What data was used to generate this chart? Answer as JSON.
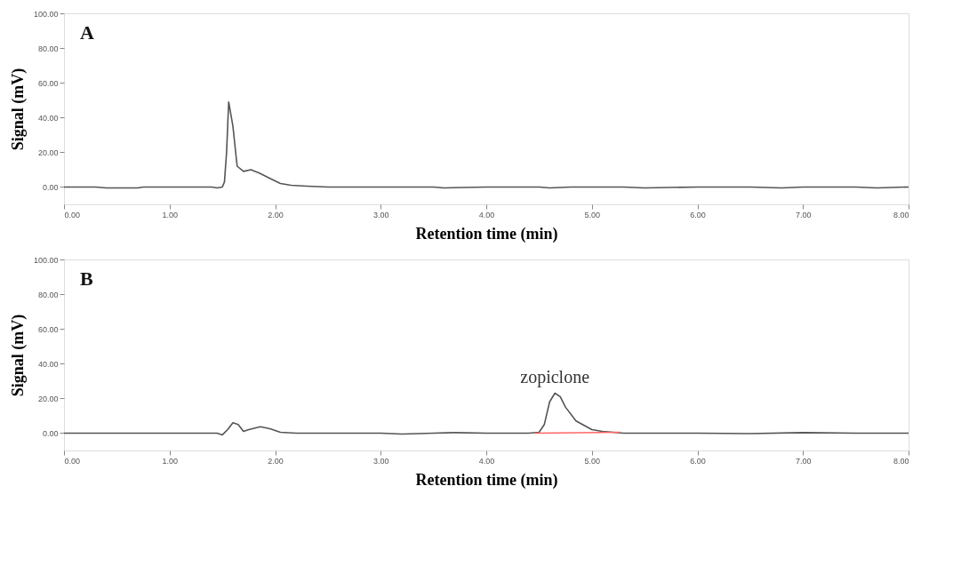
{
  "chart_data": [
    {
      "type": "line",
      "xlabel": "Retention time (min)",
      "ylabel": "Signal (mV)",
      "annotations": [
        "A"
      ],
      "xlim": [
        0,
        8
      ],
      "ylim": [
        -10,
        100
      ],
      "xticks": [
        {
          "value": 0,
          "label": "0.00"
        },
        {
          "value": 1,
          "label": "1.00"
        },
        {
          "value": 2,
          "label": "2.00"
        },
        {
          "value": 3,
          "label": "3.00"
        },
        {
          "value": 4,
          "label": "4.00"
        },
        {
          "value": 5,
          "label": "5.00"
        },
        {
          "value": 6,
          "label": "6.00"
        },
        {
          "value": 7,
          "label": "7.00"
        },
        {
          "value": 8,
          "label": "8.00"
        }
      ],
      "yticks": [
        {
          "value": 0,
          "label": "0.00"
        },
        {
          "value": 20,
          "label": "20.00"
        },
        {
          "value": 40,
          "label": "40.00"
        },
        {
          "value": 60,
          "label": "60.00"
        },
        {
          "value": 80,
          "label": "80.00"
        },
        {
          "value": 100,
          "label": "100.00"
        }
      ],
      "grid": false,
      "marker": "none",
      "line_style": "solid",
      "x": [
        0,
        0.3,
        0.4,
        0.7,
        0.75,
        1.4,
        1.45,
        1.5,
        1.52,
        1.54,
        1.56,
        1.6,
        1.64,
        1.7,
        1.77,
        1.85,
        1.95,
        2.05,
        2.15,
        2.3,
        2.5,
        3.5,
        3.6,
        4.0,
        4.5,
        4.6,
        4.8,
        5.3,
        5.5,
        6.0,
        6.5,
        6.8,
        7.0,
        7.5,
        7.7,
        8.0
      ],
      "series": [
        {
          "color": "#555555",
          "values": [
            0,
            0,
            -0.5,
            -0.5,
            0,
            0,
            -0.5,
            0,
            3,
            20,
            49,
            35,
            12,
            9,
            10,
            8,
            5,
            2,
            1,
            0.5,
            0,
            0,
            -0.5,
            0,
            0,
            -0.5,
            0,
            0,
            -0.5,
            0,
            0,
            -0.5,
            0,
            0,
            -0.5,
            0
          ]
        }
      ]
    },
    {
      "type": "line",
      "xlabel": "Retention time (min)",
      "ylabel": "Signal (mV)",
      "annotations": [
        "B",
        {
          "text": "zopiclone",
          "x": 4.65,
          "y": 23
        }
      ],
      "xlim": [
        0,
        8
      ],
      "ylim": [
        -10,
        100
      ],
      "xticks": [
        {
          "value": 0,
          "label": "0.00"
        },
        {
          "value": 1,
          "label": "1.00"
        },
        {
          "value": 2,
          "label": "2.00"
        },
        {
          "value": 3,
          "label": "3.00"
        },
        {
          "value": 4,
          "label": "4.00"
        },
        {
          "value": 5,
          "label": "5.00"
        },
        {
          "value": 6,
          "label": "6.00"
        },
        {
          "value": 7,
          "label": "7.00"
        },
        {
          "value": 8,
          "label": "8.00"
        }
      ],
      "yticks": [
        {
          "value": 0,
          "label": "0.00"
        },
        {
          "value": 20,
          "label": "20.00"
        },
        {
          "value": 40,
          "label": "40.00"
        },
        {
          "value": 60,
          "label": "60.00"
        },
        {
          "value": 80,
          "label": "80.00"
        },
        {
          "value": 100,
          "label": "100.00"
        }
      ],
      "grid": false,
      "marker": "none",
      "line_style": "solid",
      "x": [
        0,
        1.45,
        1.5,
        1.55,
        1.6,
        1.65,
        1.7,
        1.75,
        1.86,
        1.95,
        2.05,
        2.2,
        3.0,
        3.2,
        3.5,
        3.7,
        4.0,
        4.4,
        4.5,
        4.55,
        4.6,
        4.65,
        4.7,
        4.75,
        4.85,
        5.0,
        5.1,
        5.3,
        5.5,
        6.0,
        6.5,
        7.0,
        7.5,
        8.0
      ],
      "series": [
        {
          "color": "#555555",
          "values": [
            0,
            0,
            -1,
            2,
            6,
            5,
            1,
            2,
            3.7,
            2.5,
            0.5,
            0,
            0,
            -0.5,
            0,
            0.3,
            0,
            0,
            0.5,
            5,
            18,
            23,
            21,
            15,
            7,
            2,
            1,
            0,
            0,
            0,
            -0.3,
            0.3,
            0,
            0
          ]
        },
        {
          "color": "#ff6666",
          "x": [
            4.46,
            5.27
          ],
          "values": [
            0,
            0.5
          ]
        }
      ]
    }
  ]
}
